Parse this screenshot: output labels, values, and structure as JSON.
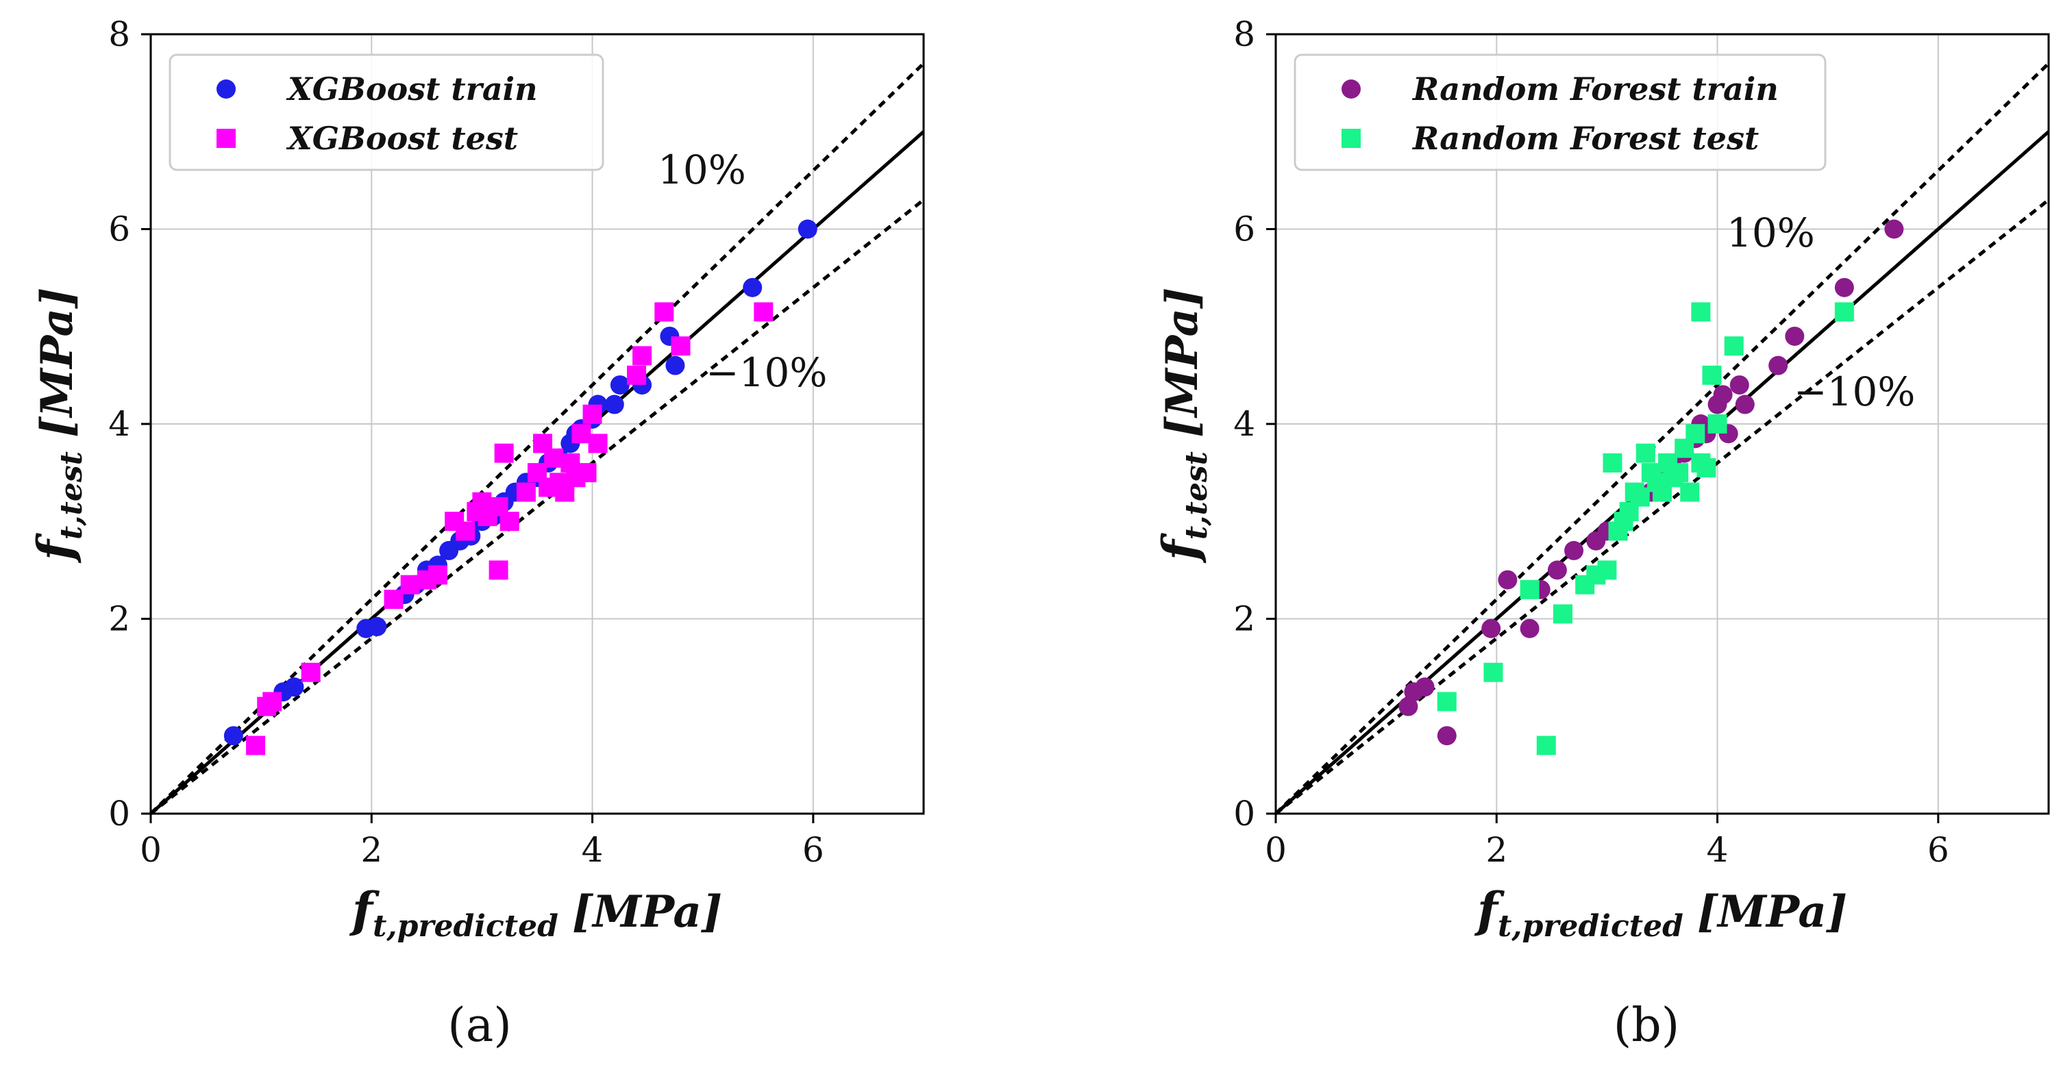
{
  "chart_data": [
    {
      "type": "scatter",
      "panel_label": "(a)",
      "xlabel": {
        "main": "f",
        "sub": "t,predicted",
        "unit": "[MPa]"
      },
      "ylabel": {
        "main": "f",
        "sub": "t,test",
        "unit": "[MPa]"
      },
      "xlim": [
        0,
        7
      ],
      "ylim": [
        0,
        8
      ],
      "xticks": [
        0,
        2,
        4,
        6
      ],
      "yticks": [
        0,
        2,
        4,
        6,
        8
      ],
      "grid": true,
      "legend_position": "top-left",
      "reference_lines": [
        {
          "kind": "solid",
          "slope": 1.0,
          "label": ""
        },
        {
          "kind": "dashed",
          "slope": 1.1,
          "label": "10%"
        },
        {
          "kind": "dashed",
          "slope": 0.9,
          "label": "−10%"
        }
      ],
      "series": [
        {
          "name": "XGBoost train",
          "marker": "circle",
          "color": "#1f1fe8",
          "points": [
            [
              0.75,
              0.8
            ],
            [
              1.2,
              1.25
            ],
            [
              1.3,
              1.3
            ],
            [
              1.95,
              1.9
            ],
            [
              2.05,
              1.92
            ],
            [
              2.3,
              2.25
            ],
            [
              2.4,
              2.35
            ],
            [
              2.5,
              2.5
            ],
            [
              2.6,
              2.55
            ],
            [
              2.7,
              2.7
            ],
            [
              2.8,
              2.8
            ],
            [
              2.9,
              2.85
            ],
            [
              3.0,
              3.0
            ],
            [
              3.1,
              3.05
            ],
            [
              3.2,
              3.2
            ],
            [
              3.3,
              3.3
            ],
            [
              3.4,
              3.4
            ],
            [
              3.5,
              3.45
            ],
            [
              3.6,
              3.6
            ],
            [
              3.7,
              3.65
            ],
            [
              3.8,
              3.8
            ],
            [
              3.85,
              3.9
            ],
            [
              3.9,
              3.95
            ],
            [
              4.0,
              4.05
            ],
            [
              4.05,
              4.2
            ],
            [
              4.2,
              4.2
            ],
            [
              4.25,
              4.4
            ],
            [
              4.45,
              4.4
            ],
            [
              4.7,
              4.9
            ],
            [
              4.75,
              4.6
            ],
            [
              5.45,
              5.4
            ],
            [
              5.95,
              6.0
            ]
          ]
        },
        {
          "name": "XGBoost test",
          "marker": "square",
          "color": "#ff00ff",
          "points": [
            [
              0.95,
              0.7
            ],
            [
              1.05,
              1.1
            ],
            [
              1.1,
              1.15
            ],
            [
              1.45,
              1.45
            ],
            [
              2.2,
              2.2
            ],
            [
              2.35,
              2.35
            ],
            [
              2.5,
              2.4
            ],
            [
              2.6,
              2.45
            ],
            [
              2.75,
              3.0
            ],
            [
              2.85,
              2.9
            ],
            [
              2.95,
              3.1
            ],
            [
              3.0,
              3.2
            ],
            [
              3.05,
              3.05
            ],
            [
              3.15,
              3.15
            ],
            [
              3.15,
              2.5
            ],
            [
              3.2,
              3.7
            ],
            [
              3.25,
              3.0
            ],
            [
              3.4,
              3.3
            ],
            [
              3.5,
              3.5
            ],
            [
              3.55,
              3.8
            ],
            [
              3.6,
              3.35
            ],
            [
              3.65,
              3.65
            ],
            [
              3.7,
              3.4
            ],
            [
              3.75,
              3.3
            ],
            [
              3.8,
              3.6
            ],
            [
              3.85,
              3.45
            ],
            [
              3.9,
              3.9
            ],
            [
              3.95,
              3.5
            ],
            [
              4.0,
              4.1
            ],
            [
              4.05,
              3.8
            ],
            [
              4.4,
              4.5
            ],
            [
              4.45,
              4.7
            ],
            [
              4.65,
              5.15
            ],
            [
              4.8,
              4.8
            ],
            [
              5.55,
              5.15
            ]
          ]
        }
      ]
    },
    {
      "type": "scatter",
      "panel_label": "(b)",
      "xlabel": {
        "main": "f",
        "sub": "t,predicted",
        "unit": "[MPa]"
      },
      "ylabel": {
        "main": "f",
        "sub": "t,test",
        "unit": "[MPa]"
      },
      "xlim": [
        0,
        7
      ],
      "ylim": [
        0,
        8
      ],
      "xticks": [
        0,
        2,
        4,
        6
      ],
      "yticks": [
        0,
        2,
        4,
        6,
        8
      ],
      "grid": true,
      "legend_position": "top-left",
      "reference_lines": [
        {
          "kind": "solid",
          "slope": 1.0,
          "label": ""
        },
        {
          "kind": "dashed",
          "slope": 1.1,
          "label": "10%"
        },
        {
          "kind": "dashed",
          "slope": 0.9,
          "label": "−10%"
        }
      ],
      "series": [
        {
          "name": "Random Forest train",
          "marker": "circle",
          "color": "#8b1a8b",
          "points": [
            [
              1.2,
              1.1
            ],
            [
              1.25,
              1.25
            ],
            [
              1.35,
              1.3
            ],
            [
              1.55,
              0.8
            ],
            [
              1.95,
              1.9
            ],
            [
              2.1,
              2.4
            ],
            [
              2.3,
              1.9
            ],
            [
              2.4,
              2.3
            ],
            [
              2.55,
              2.5
            ],
            [
              2.7,
              2.7
            ],
            [
              2.9,
              2.8
            ],
            [
              3.0,
              2.9
            ],
            [
              3.2,
              3.1
            ],
            [
              3.4,
              3.3
            ],
            [
              3.5,
              3.5
            ],
            [
              3.6,
              3.55
            ],
            [
              3.7,
              3.7
            ],
            [
              3.8,
              3.85
            ],
            [
              3.85,
              4.0
            ],
            [
              3.9,
              3.9
            ],
            [
              4.0,
              4.2
            ],
            [
              4.05,
              4.3
            ],
            [
              4.1,
              3.9
            ],
            [
              4.2,
              4.4
            ],
            [
              4.25,
              4.2
            ],
            [
              4.55,
              4.6
            ],
            [
              4.7,
              4.9
            ],
            [
              5.15,
              5.4
            ],
            [
              5.6,
              6.0
            ]
          ]
        },
        {
          "name": "Random Forest test",
          "marker": "square",
          "color": "#19f58a",
          "points": [
            [
              1.55,
              1.15
            ],
            [
              1.97,
              1.45
            ],
            [
              2.3,
              2.3
            ],
            [
              2.45,
              0.7
            ],
            [
              2.6,
              2.05
            ],
            [
              2.8,
              2.35
            ],
            [
              2.9,
              2.45
            ],
            [
              3.0,
              2.5
            ],
            [
              3.05,
              3.6
            ],
            [
              3.1,
              2.9
            ],
            [
              3.15,
              3.0
            ],
            [
              3.2,
              3.1
            ],
            [
              3.25,
              3.3
            ],
            [
              3.3,
              3.25
            ],
            [
              3.35,
              3.7
            ],
            [
              3.4,
              3.5
            ],
            [
              3.45,
              3.4
            ],
            [
              3.5,
              3.3
            ],
            [
              3.55,
              3.6
            ],
            [
              3.6,
              3.45
            ],
            [
              3.65,
              3.5
            ],
            [
              3.7,
              3.75
            ],
            [
              3.75,
              3.3
            ],
            [
              3.8,
              3.9
            ],
            [
              3.85,
              3.6
            ],
            [
              3.85,
              5.15
            ],
            [
              3.9,
              3.55
            ],
            [
              3.95,
              4.5
            ],
            [
              4.0,
              4.0
            ],
            [
              4.15,
              4.8
            ],
            [
              5.15,
              5.15
            ]
          ]
        }
      ]
    }
  ]
}
